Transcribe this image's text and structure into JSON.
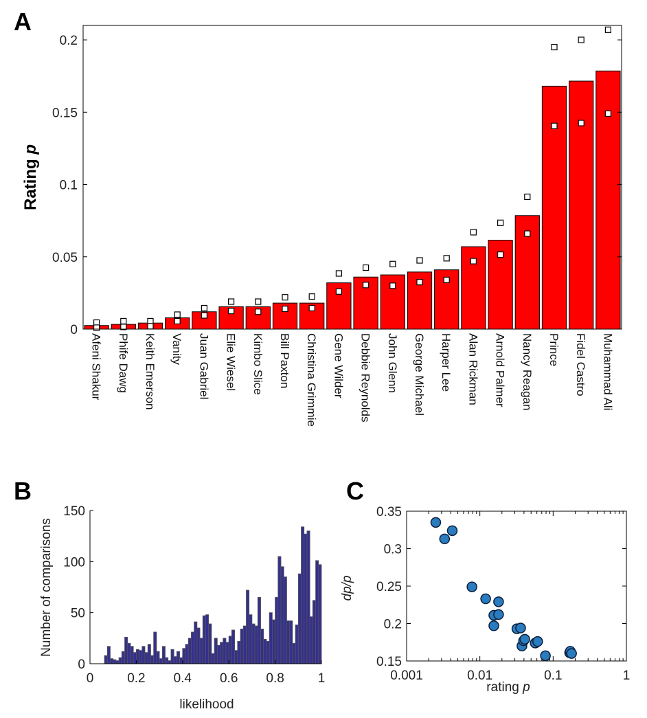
{
  "panels": {
    "a": "A",
    "b": "B",
    "c": "C"
  },
  "chart_data": [
    {
      "type": "bar",
      "id": "A",
      "ylabel_text": "Rating ",
      "ylabel_italic": "p",
      "ylim": [
        0,
        0.21
      ],
      "yticks": [
        "0",
        "0.05",
        "0.1",
        "0.15",
        "0.2"
      ],
      "ytick_values": [
        0,
        0.05,
        0.1,
        0.15,
        0.2
      ],
      "categories": [
        "Afeni Shakur",
        "Phife Dawg",
        "Keith Emerson",
        "Vanity",
        "Juan Gabriel",
        "Elie Wiesel",
        "Kimbo Slice",
        "Bill Paxton",
        "Christina Grimmie",
        "Gene Wilder",
        "Debbie Reynolds",
        "John Glenn",
        "George Michael",
        "Harper Lee",
        "Alan Rickman",
        "Arnold Palmer",
        "Nancy Reagan",
        "Prince",
        "Fidel Castro",
        "Muhammad Ali"
      ],
      "values": [
        0.0025,
        0.0033,
        0.0042,
        0.0078,
        0.012,
        0.0155,
        0.0155,
        0.018,
        0.018,
        0.032,
        0.036,
        0.0375,
        0.0395,
        0.041,
        0.057,
        0.0615,
        0.0785,
        0.168,
        0.1715,
        0.1785
      ],
      "upper": [
        0.0045,
        0.0055,
        0.0055,
        0.01,
        0.0145,
        0.019,
        0.019,
        0.022,
        0.0225,
        0.0385,
        0.0425,
        0.045,
        0.0475,
        0.049,
        0.067,
        0.0735,
        0.0915,
        0.195,
        0.2,
        0.207
      ],
      "lower": [
        0.001,
        0.0015,
        0.002,
        0.0055,
        0.0095,
        0.0125,
        0.012,
        0.014,
        0.0145,
        0.026,
        0.0305,
        0.03,
        0.0325,
        0.034,
        0.047,
        0.0515,
        0.066,
        0.1405,
        0.1425,
        0.149
      ],
      "bar_color": "#ff0000"
    },
    {
      "type": "bar",
      "id": "B",
      "xlabel": "likelihood",
      "ylabel": "Number of comparisons",
      "xlim": [
        0,
        1
      ],
      "ylim": [
        0,
        150
      ],
      "xticks": [
        "0",
        "0.2",
        "0.4",
        "0.6",
        "0.8",
        "1"
      ],
      "xtick_values": [
        0,
        0.2,
        0.4,
        0.6,
        0.8,
        1
      ],
      "yticks": [
        "0",
        "50",
        "100",
        "150"
      ],
      "ytick_values": [
        0,
        50,
        100,
        150
      ],
      "bin_width": 0.0125,
      "bin_starts": [
        0.0625,
        0.075,
        0.0875,
        0.1,
        0.1125,
        0.125,
        0.1375,
        0.15,
        0.1625,
        0.175,
        0.1875,
        0.2,
        0.2125,
        0.225,
        0.2375,
        0.25,
        0.2625,
        0.275,
        0.2875,
        0.3,
        0.3125,
        0.325,
        0.3375,
        0.35,
        0.3625,
        0.375,
        0.3875,
        0.4,
        0.4125,
        0.425,
        0.4375,
        0.45,
        0.4625,
        0.475,
        0.4875,
        0.5,
        0.5125,
        0.525,
        0.5375,
        0.55,
        0.5625,
        0.575,
        0.5875,
        0.6,
        0.6125,
        0.625,
        0.6375,
        0.65,
        0.6625,
        0.675,
        0.6875,
        0.7,
        0.7125,
        0.725,
        0.7375,
        0.75,
        0.7625,
        0.775,
        0.7875,
        0.8,
        0.8125,
        0.825,
        0.8375,
        0.85,
        0.8625,
        0.875,
        0.8875,
        0.9,
        0.9125,
        0.925,
        0.9375,
        0.95,
        0.9625,
        0.975,
        0.9875
      ],
      "counts": [
        8,
        17,
        5,
        4,
        3,
        6,
        12,
        26,
        20,
        17,
        11,
        14,
        13,
        17,
        11,
        19,
        8,
        31,
        12,
        5,
        17,
        6,
        3,
        14,
        7,
        12,
        6,
        15,
        19,
        25,
        31,
        41,
        35,
        25,
        47,
        48,
        39,
        10,
        25,
        18,
        21,
        25,
        21,
        27,
        33,
        13,
        22,
        34,
        37,
        72,
        48,
        39,
        37,
        65,
        34,
        24,
        22,
        50,
        43,
        65,
        105,
        95,
        85,
        42,
        42,
        20,
        38,
        88,
        134,
        127,
        130,
        46,
        62,
        101,
        97
      ],
      "bar_color": "#34308c"
    },
    {
      "type": "scatter",
      "id": "C",
      "xlabel": "rating ",
      "xlabel_italic": "p",
      "ylabel": "dp/p",
      "xscale": "log",
      "xlim": [
        0.001,
        1
      ],
      "ylim": [
        0.15,
        0.35
      ],
      "xticks": [
        "0.001",
        "0.01",
        "0.1",
        "1"
      ],
      "xtick_values": [
        0.001,
        0.01,
        0.1,
        1
      ],
      "yticks": [
        "0.15",
        "0.2",
        "0.25",
        "0.3",
        "0.35"
      ],
      "ytick_values": [
        0.15,
        0.2,
        0.25,
        0.3,
        0.35
      ],
      "x": [
        0.0025,
        0.0033,
        0.0042,
        0.0078,
        0.012,
        0.0155,
        0.0155,
        0.018,
        0.018,
        0.032,
        0.036,
        0.0375,
        0.0395,
        0.041,
        0.057,
        0.0615,
        0.0785,
        0.168,
        0.1715,
        0.1785
      ],
      "y": [
        0.335,
        0.313,
        0.324,
        0.249,
        0.233,
        0.211,
        0.197,
        0.229,
        0.212,
        0.193,
        0.194,
        0.17,
        0.177,
        0.179,
        0.174,
        0.176,
        0.157,
        0.161,
        0.163,
        0.16
      ],
      "point_color": "#2b7bbf"
    }
  ]
}
